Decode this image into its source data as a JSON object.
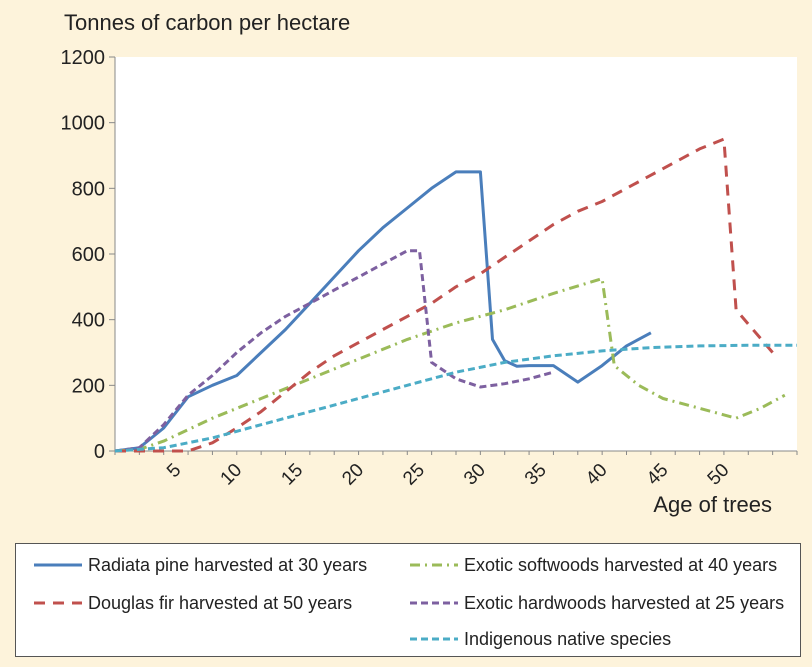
{
  "chart_data": {
    "type": "line",
    "ylabel": "Tonnes of carbon per hectare",
    "xlabel": "Age of trees",
    "ylim": [
      0,
      1200
    ],
    "xlim": [
      0,
      56
    ],
    "yticks": [
      0,
      200,
      400,
      600,
      800,
      1000,
      1200
    ],
    "xticks": [
      5,
      10,
      15,
      20,
      25,
      30,
      35,
      40,
      45,
      50
    ],
    "grid": false,
    "legend_position": "bottom",
    "series": [
      {
        "name": "Radiata pine harvested at 30 years",
        "color": "#4a7ebb",
        "style": "solid",
        "x": [
          0,
          2,
          4,
          6,
          8,
          10,
          12,
          14,
          16,
          18,
          20,
          22,
          24,
          26,
          28,
          30,
          31,
          32,
          33,
          34,
          36,
          38,
          40,
          42,
          44
        ],
        "y": [
          0,
          10,
          70,
          165,
          200,
          230,
          300,
          370,
          450,
          530,
          610,
          680,
          740,
          800,
          850,
          850,
          340,
          275,
          258,
          260,
          260,
          210,
          260,
          320,
          360
        ]
      },
      {
        "name": "Exotic softwoods harvested at 40 years",
        "color": "#9bbb59",
        "style": "dashdot",
        "x": [
          0,
          2,
          4,
          8,
          12,
          16,
          20,
          24,
          28,
          32,
          36,
          40,
          41,
          43,
          45,
          48,
          51,
          53,
          55
        ],
        "y": [
          0,
          5,
          30,
          100,
          160,
          220,
          280,
          340,
          390,
          430,
          480,
          525,
          260,
          200,
          160,
          130,
          100,
          130,
          170
        ]
      },
      {
        "name": "Douglas fir harvested at 50 years",
        "color": "#c0504d",
        "style": "dashed",
        "x": [
          0,
          6,
          8,
          10,
          12,
          14,
          16,
          18,
          20,
          22,
          24,
          26,
          28,
          30,
          32,
          34,
          36,
          38,
          40,
          42,
          44,
          46,
          48,
          50,
          51,
          54
        ],
        "y": [
          0,
          0,
          25,
          70,
          120,
          180,
          240,
          290,
          330,
          370,
          410,
          450,
          500,
          540,
          590,
          640,
          690,
          730,
          760,
          800,
          840,
          880,
          920,
          950,
          430,
          300
        ]
      },
      {
        "name": "Exotic hardwoods harvested at 25 years",
        "color": "#7d60a0",
        "style": "dashed",
        "x": [
          0,
          2,
          4,
          6,
          8,
          10,
          12,
          14,
          16,
          18,
          20,
          22,
          24,
          25,
          26,
          28,
          30,
          32,
          34,
          36
        ],
        "y": [
          0,
          10,
          80,
          170,
          230,
          300,
          360,
          410,
          450,
          490,
          530,
          570,
          610,
          610,
          270,
          220,
          195,
          205,
          220,
          240
        ]
      },
      {
        "name": "Indigenous native species",
        "color": "#4bacc6",
        "style": "dashed",
        "x": [
          0,
          4,
          8,
          12,
          16,
          20,
          24,
          28,
          32,
          36,
          40,
          44,
          48,
          52,
          56
        ],
        "y": [
          0,
          10,
          40,
          80,
          120,
          160,
          200,
          240,
          270,
          290,
          305,
          315,
          320,
          322,
          322
        ]
      }
    ]
  }
}
